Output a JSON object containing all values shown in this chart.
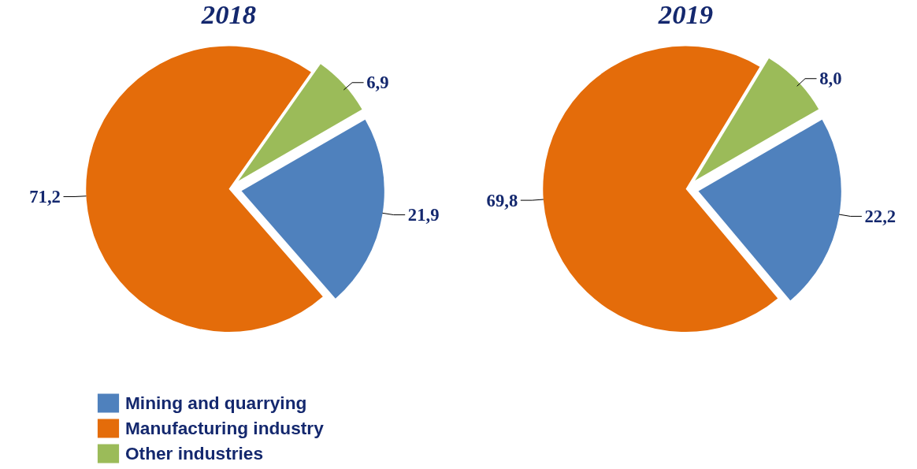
{
  "chart_data": [
    {
      "type": "pie",
      "title": "2018",
      "categories": [
        "Mining and quarrying",
        "Manufacturing industry",
        "Other industries"
      ],
      "values": [
        21.9,
        71.2,
        6.9
      ],
      "colors": [
        "#4f81bd",
        "#e46c0a",
        "#9bbb59"
      ],
      "value_labels": [
        "21,9",
        "71,2",
        "6,9"
      ],
      "legend": "bottom left"
    },
    {
      "type": "pie",
      "title": "2019",
      "values": [
        22.2,
        69.8,
        8.0
      ],
      "colors": [
        "#4f81bd",
        "#e46c0a",
        "#9bbb59"
      ],
      "value_labels": [
        "22,2",
        "69,8",
        "8,0"
      ],
      "legend": false
    }
  ]
}
